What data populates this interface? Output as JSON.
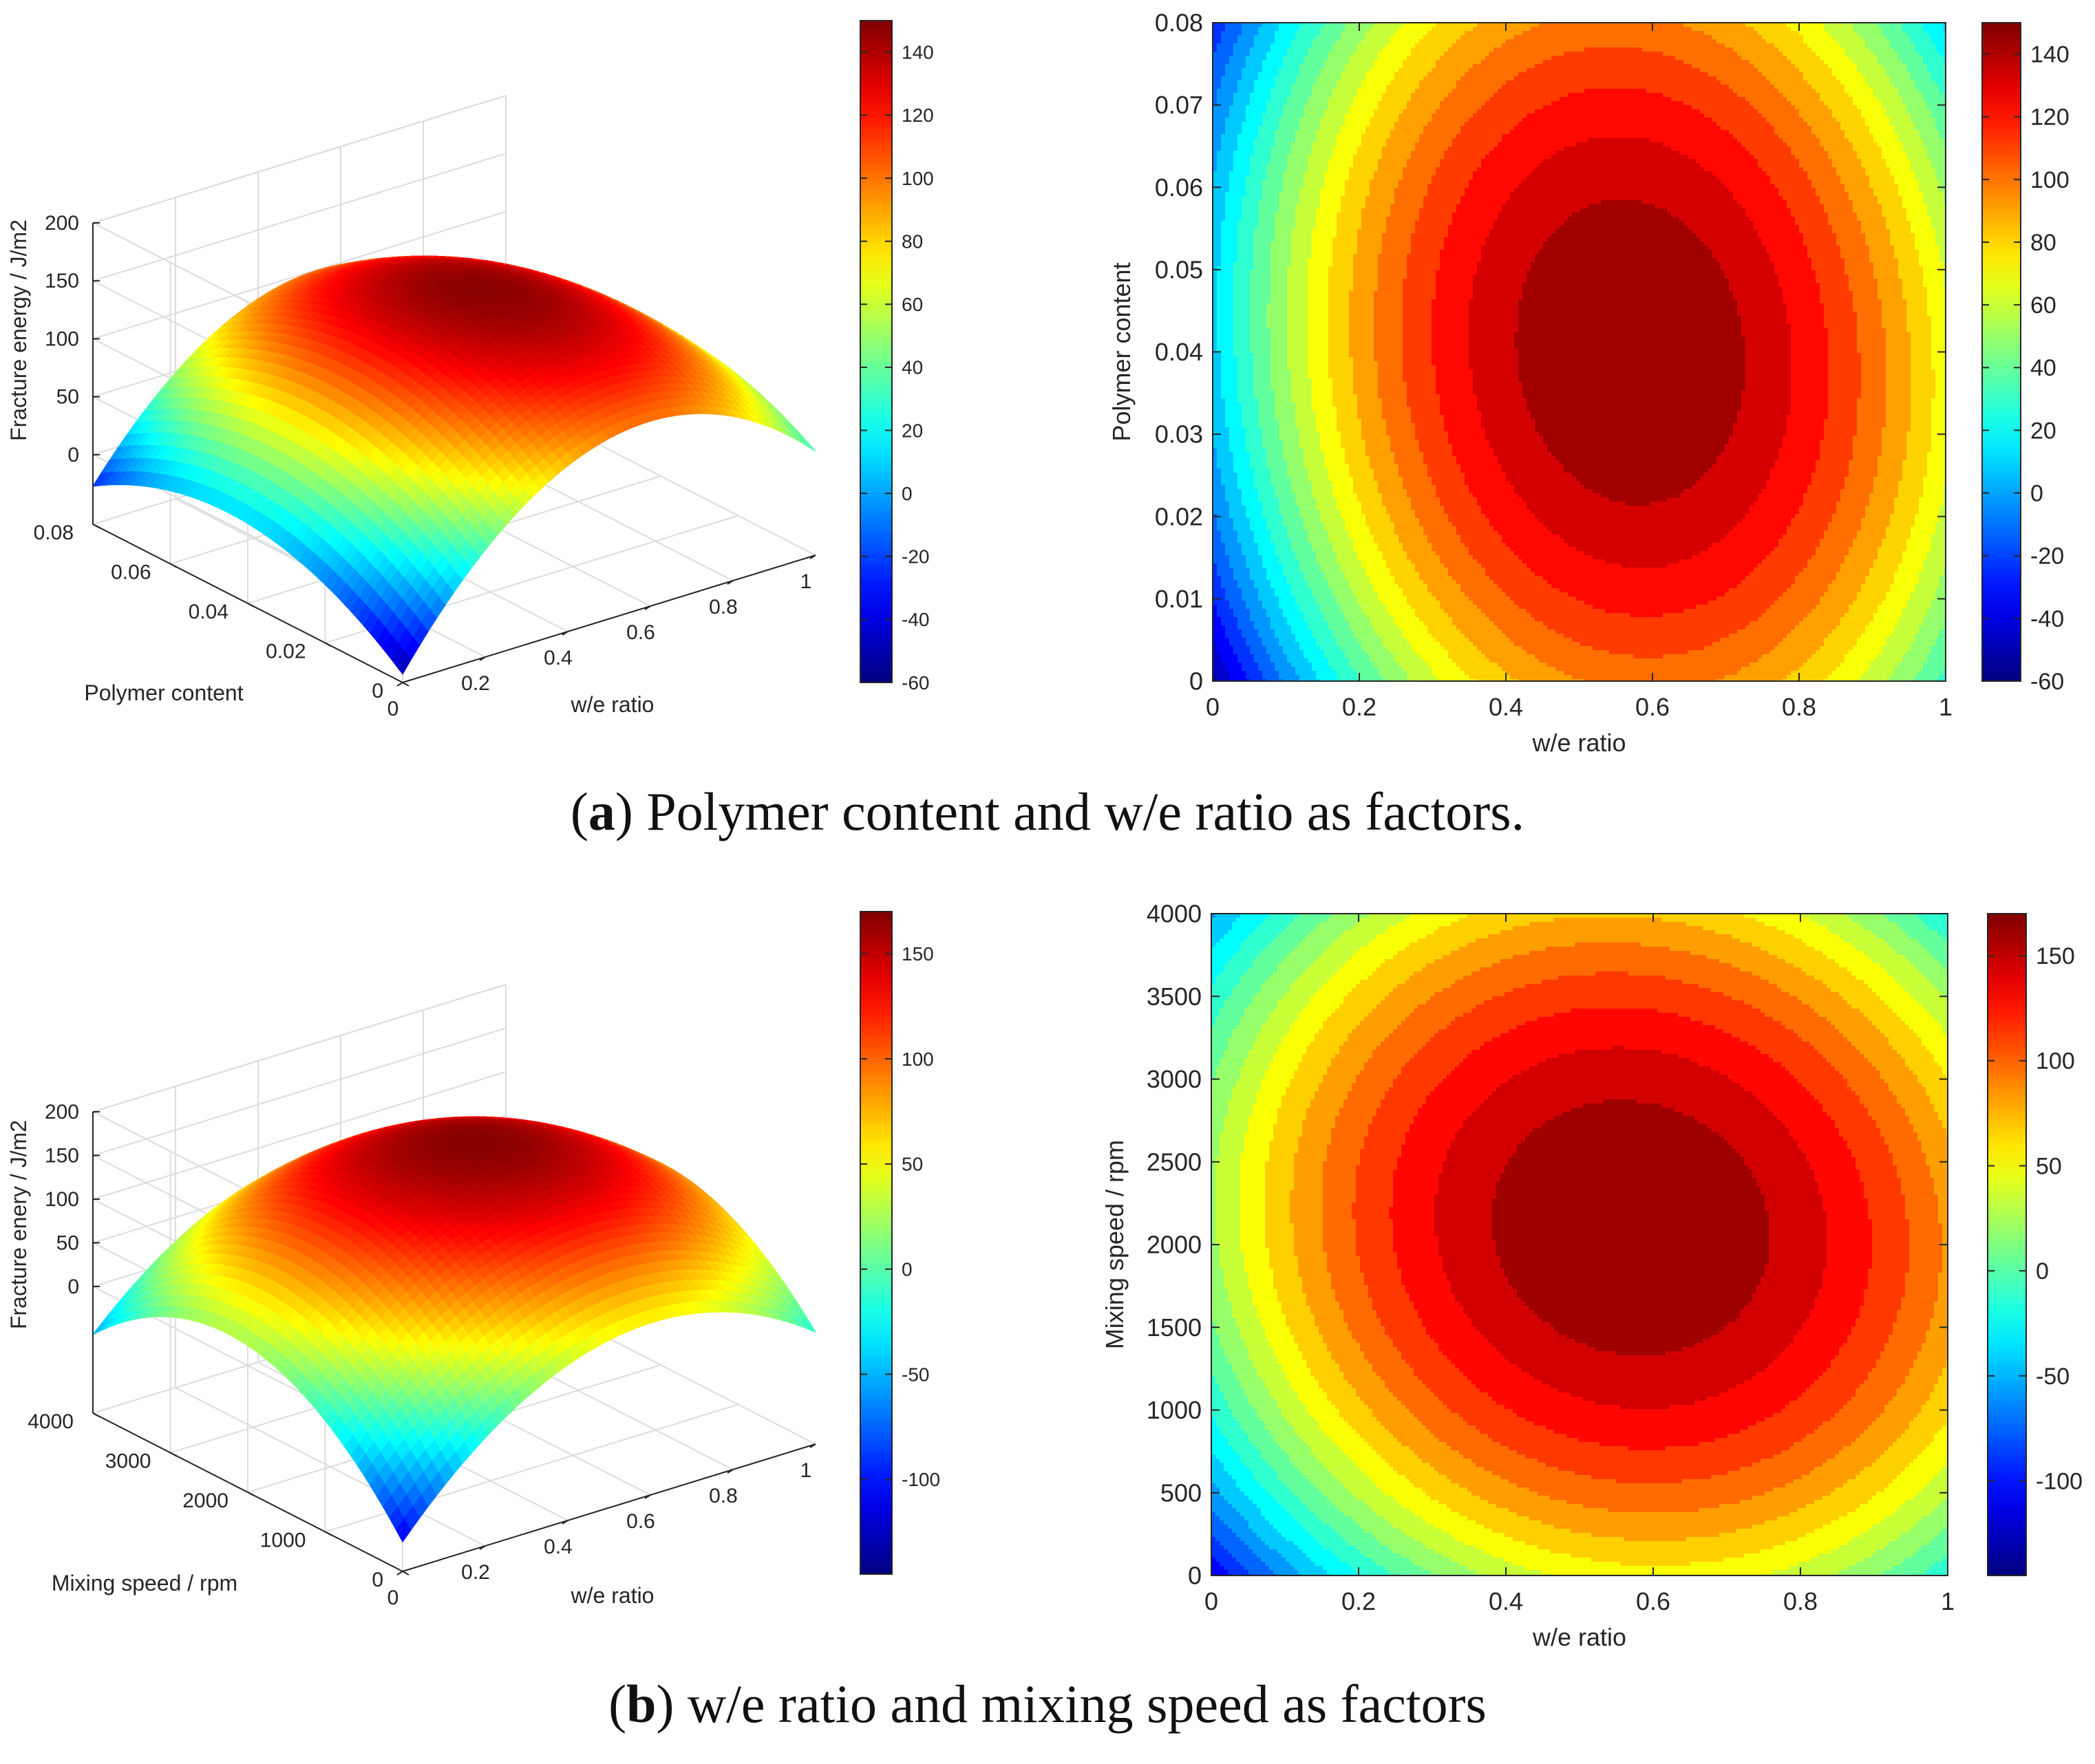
{
  "captions": {
    "a": {
      "letter": "a",
      "text": ") Polymer content and w/e ratio as factors."
    },
    "b": {
      "letter": "b",
      "text": ") w/e ratio and mixing speed as factors"
    }
  },
  "chart_data": [
    {
      "id": "a-surface",
      "type": "surface3d",
      "title": "",
      "xlabel": "w/e ratio",
      "ylabel": "Polymer content",
      "zlabel": "Fracture energy / J/m2",
      "xlim": [
        0,
        1
      ],
      "ylim": [
        0,
        0.08
      ],
      "zlim": [
        -60,
        200
      ],
      "x_ticks": [
        "0",
        "0.2",
        "0.4",
        "0.6",
        "0.8",
        "1"
      ],
      "y_ticks": [
        "0",
        "0.02",
        "0.04",
        "0.06",
        "0.08"
      ],
      "z_ticks": [
        "0",
        "50",
        "100",
        "150",
        "200"
      ],
      "peak": {
        "x": 0.57,
        "y": 0.04,
        "z": 148
      },
      "corner_values": {
        "x0_y0": -60,
        "x1_y0": 20,
        "x0_y1": -20,
        "x1_y1": 20
      },
      "colorbar": {
        "min": -60,
        "max": 150,
        "ticks": [
          "-60",
          "-40",
          "-20",
          "0",
          "20",
          "40",
          "60",
          "80",
          "100",
          "120",
          "140"
        ]
      }
    },
    {
      "id": "a-contour",
      "type": "contour",
      "xlabel": "w/e ratio",
      "ylabel": "Polymer content",
      "xlim": [
        0,
        1
      ],
      "ylim": [
        0,
        0.08
      ],
      "x_ticks": [
        "0",
        "0.2",
        "0.4",
        "0.6",
        "0.8",
        "1"
      ],
      "y_ticks": [
        "0",
        "0.01",
        "0.02",
        "0.03",
        "0.04",
        "0.05",
        "0.06",
        "0.07",
        "0.08"
      ],
      "center": {
        "x": 0.57,
        "y": 0.04
      },
      "peak_value": 148,
      "levels": 20,
      "colorbar": {
        "min": -60,
        "max": 150,
        "ticks": [
          "-60",
          "-40",
          "-20",
          "0",
          "20",
          "40",
          "60",
          "80",
          "100",
          "120",
          "140"
        ]
      }
    },
    {
      "id": "b-surface",
      "type": "surface3d",
      "xlabel": "w/e ratio",
      "ylabel": "Mixing speed / rpm",
      "zlabel": "Fracture enery / J/m2",
      "xlim": [
        0,
        1
      ],
      "ylim": [
        0,
        4000
      ],
      "zlim": [
        -145,
        200
      ],
      "x_ticks": [
        "0",
        "0.2",
        "0.4",
        "0.6",
        "0.8",
        "1"
      ],
      "y_ticks": [
        "0",
        "1000",
        "2000",
        "3000",
        "4000"
      ],
      "z_ticks": [
        "0",
        "50",
        "100",
        "150",
        "200"
      ],
      "peak": {
        "x": 0.57,
        "y": 2100,
        "z": 168
      },
      "corner_values": {
        "x0_y0": -140,
        "x1_y0": -35,
        "x0_y1": -40,
        "x1_y1": 20
      },
      "colorbar": {
        "min": -145,
        "max": 170,
        "ticks": [
          "-100",
          "-50",
          "0",
          "50",
          "100",
          "150"
        ]
      }
    },
    {
      "id": "b-contour",
      "type": "contour",
      "xlabel": "w/e ratio",
      "ylabel": "Mixing speed / rpm",
      "xlim": [
        0,
        1
      ],
      "ylim": [
        0,
        4000
      ],
      "x_ticks": [
        "0",
        "0.2",
        "0.4",
        "0.6",
        "0.8",
        "1"
      ],
      "y_ticks": [
        "0",
        "500",
        "1000",
        "1500",
        "2000",
        "2500",
        "3000",
        "3500",
        "4000"
      ],
      "center": {
        "x": 0.57,
        "y": 2100
      },
      "peak_value": 168,
      "levels": 20,
      "colorbar": {
        "min": -145,
        "max": 170,
        "ticks": [
          "-100",
          "-50",
          "0",
          "50",
          "100",
          "150"
        ]
      }
    }
  ]
}
